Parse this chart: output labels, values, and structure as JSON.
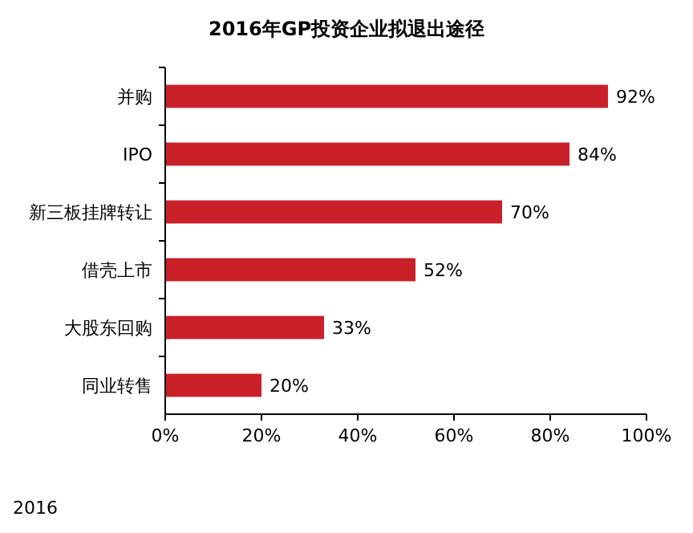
{
  "chart_data": {
    "type": "bar",
    "orientation": "horizontal",
    "title": "2016年GP投资企业拟退出途径",
    "categories": [
      "并购",
      "IPO",
      "新三板挂牌转让",
      "借壳上市",
      "大股东回购",
      "同业转售"
    ],
    "values": [
      92,
      84,
      70,
      52,
      33,
      20
    ],
    "value_labels": [
      "92%",
      "84%",
      "70%",
      "52%",
      "33%",
      "20%"
    ],
    "color": "#c9202a",
    "xlim": [
      0,
      100
    ],
    "xticks": [
      {
        "value": 0,
        "label": "0%"
      },
      {
        "value": 20,
        "label": "20%"
      },
      {
        "value": 40,
        "label": "40%"
      },
      {
        "value": 60,
        "label": "60%"
      },
      {
        "value": 80,
        "label": "80%"
      },
      {
        "value": 100,
        "label": "100%"
      }
    ],
    "annotations": [
      "2016"
    ]
  }
}
